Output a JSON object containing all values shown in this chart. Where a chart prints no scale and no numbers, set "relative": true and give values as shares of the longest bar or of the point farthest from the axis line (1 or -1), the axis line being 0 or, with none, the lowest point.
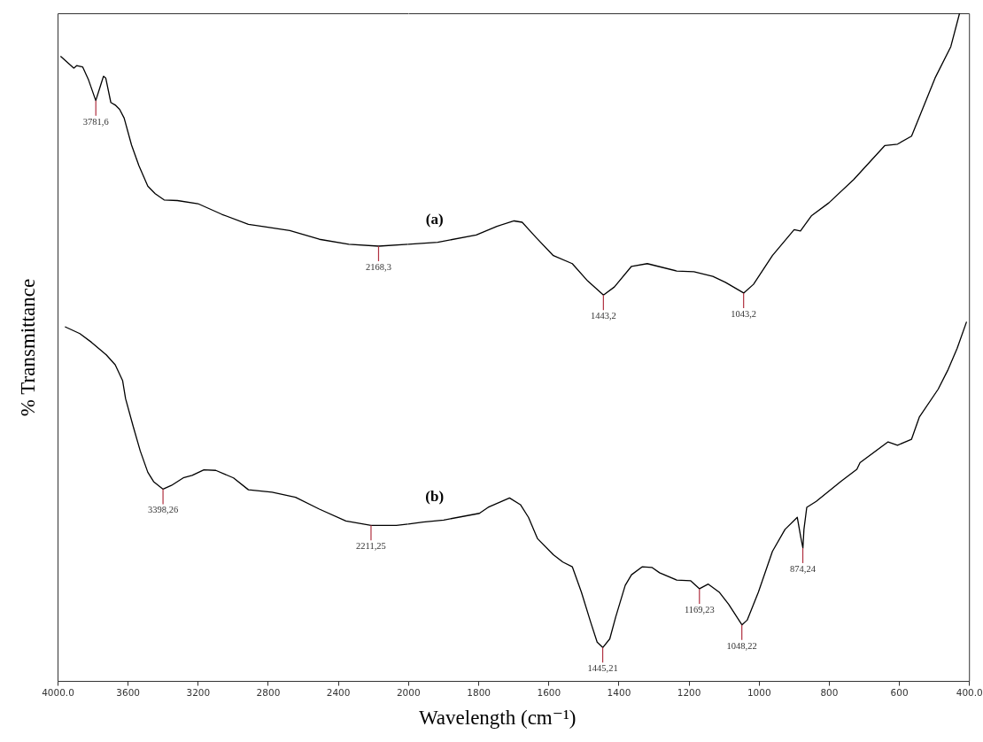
{
  "chart_data": [
    {
      "type": "line",
      "relative": true,
      "ylabel": "% Transmittance",
      "tick_labels": "x",
      "xlim": [
        4000,
        2000
      ],
      "xticks": [
        {
          "value": 4000,
          "label": "4000.0"
        },
        3600,
        3200,
        2800,
        2400,
        2000
      ],
      "series": [
        {
          "color": "#000000",
          "x": [
            3983,
            3907,
            3890,
            3857,
            3823,
            3782,
            3755,
            3738,
            3725,
            3696,
            3671,
            3646,
            3620,
            3578,
            3536,
            3485,
            3443,
            3392,
            3316,
            3199,
            3063,
            2911,
            2675,
            2506,
            2338,
            2168,
            2000
          ],
          "values": [
            1,
            0.981,
            0.985,
            0.983,
            0.962,
            0.929,
            0.953,
            0.968,
            0.965,
            0.926,
            0.922,
            0.915,
            0.901,
            0.858,
            0.825,
            0.792,
            0.78,
            0.77,
            0.769,
            0.764,
            0.747,
            0.731,
            0.721,
            0.707,
            0.699,
            0.696,
            0.699
          ]
        },
        {
          "color": "#000000",
          "x": [
            3958,
            3873,
            3806,
            3722,
            3671,
            3629,
            3612,
            3570,
            3528,
            3485,
            3452,
            3398,
            3350,
            3283,
            3232,
            3165,
            3097,
            2996,
            2911,
            2776,
            2642,
            2506,
            2355,
            2211,
            2067,
            2000
          ],
          "values": [
            0.567,
            0.556,
            0.542,
            0.522,
            0.506,
            0.481,
            0.452,
            0.409,
            0.368,
            0.334,
            0.319,
            0.307,
            0.313,
            0.325,
            0.329,
            0.338,
            0.337,
            0.325,
            0.306,
            0.302,
            0.294,
            0.275,
            0.256,
            0.249,
            0.249,
            0.251
          ]
        }
      ],
      "annotations": [
        {
          "text": "3781,6",
          "x": 3781.6,
          "y": 0.929
        },
        {
          "text": "2168,3",
          "x": 2168.3,
          "y": 0.696
        },
        {
          "text": "3398,26",
          "x": 3398.26,
          "y": 0.307
        },
        {
          "text": "2211,25",
          "x": 2211.25,
          "y": 0.249
        }
      ]
    },
    {
      "type": "line",
      "relative": true,
      "xlabel": "Wavelength (cm⁻¹)",
      "tick_labels": "x",
      "xlim": [
        2000,
        400
      ],
      "xticks": [
        1800,
        1600,
        1400,
        1200,
        1000,
        800,
        600,
        {
          "value": 400,
          "label": "400.0"
        }
      ],
      "series": [
        {
          "name": "(a)",
          "color": "#000000",
          "x": [
            2000,
            1916,
            1806,
            1747,
            1698,
            1675,
            1635,
            1586,
            1532,
            1488,
            1443,
            1412,
            1363,
            1318,
            1234,
            1185,
            1131,
            1095,
            1043,
            1015,
            961,
            899,
            881,
            849,
            800,
            729,
            640,
            604,
            564,
            533,
            497,
            452,
            427
          ],
          "values": [
            0.654,
            0.657,
            0.668,
            0.681,
            0.689,
            0.687,
            0.664,
            0.637,
            0.625,
            0.599,
            0.578,
            0.59,
            0.621,
            0.625,
            0.614,
            0.613,
            0.606,
            0.597,
            0.581,
            0.594,
            0.637,
            0.676,
            0.674,
            0.697,
            0.716,
            0.751,
            0.802,
            0.804,
            0.816,
            0.856,
            0.903,
            0.95,
            1
          ]
        },
        {
          "name": "(b)",
          "color": "#000000",
          "x": [
            2000,
            1958,
            1899,
            1797,
            1772,
            1711,
            1680,
            1657,
            1631,
            1586,
            1559,
            1532,
            1506,
            1479,
            1461,
            1445,
            1425,
            1408,
            1381,
            1363,
            1332,
            1305,
            1283,
            1234,
            1194,
            1169,
            1144,
            1113,
            1086,
            1048,
            1033,
            1001,
            961,
            925,
            890,
            880,
            874,
            871,
            863,
            836,
            765,
            720,
            711,
            631,
            604,
            564,
            542,
            488,
            461,
            434,
            407
          ],
          "values": [
            0.235,
            0.238,
            0.241,
            0.251,
            0.26,
            0.274,
            0.264,
            0.245,
            0.213,
            0.189,
            0.178,
            0.171,
            0.133,
            0.087,
            0.058,
            0.05,
            0.063,
            0.096,
            0.143,
            0.159,
            0.171,
            0.17,
            0.162,
            0.151,
            0.15,
            0.138,
            0.145,
            0.133,
            0.115,
            0.084,
            0.091,
            0.133,
            0.194,
            0.227,
            0.245,
            0.215,
            0.199,
            0.227,
            0.26,
            0.269,
            0.299,
            0.317,
            0.327,
            0.358,
            0.353,
            0.362,
            0.395,
            0.437,
            0.465,
            0.498,
            0.538
          ]
        }
      ],
      "annotations": [
        {
          "text": "1443,2",
          "x": 1443.2,
          "y": 0.578
        },
        {
          "text": "1043,2",
          "x": 1043.2,
          "y": 0.581
        },
        {
          "text": "1445,21",
          "x": 1445.21,
          "y": 0.05
        },
        {
          "text": "1169,23",
          "x": 1169.23,
          "y": 0.138
        },
        {
          "text": "1048,22",
          "x": 1048.22,
          "y": 0.084
        },
        {
          "text": "874,24",
          "x": 874.24,
          "y": 0.199
        }
      ]
    }
  ]
}
